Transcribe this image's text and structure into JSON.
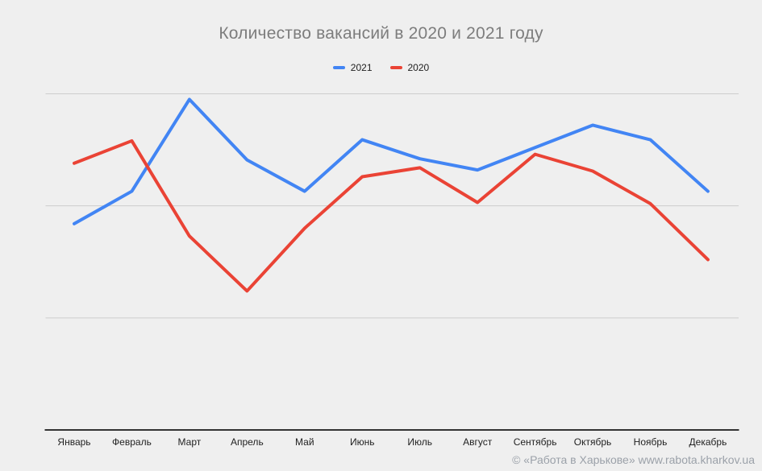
{
  "chart_data": {
    "type": "line",
    "title": "Количество вакансий в 2020 и 2021 году",
    "xlabel": "",
    "ylabel": "",
    "y_tick_labels": [],
    "y_axis_note": "no y-axis labels shown; values estimated in gridline units (baseline = 0, gridline spacing = 1)",
    "ylim": [
      0,
      3.15
    ],
    "gridline_values": [
      1,
      2,
      3
    ],
    "legend_position": "top-center",
    "categories": [
      "Январь",
      "Февраль",
      "Март",
      "Апрель",
      "Май",
      "Июнь",
      "Июль",
      "Август",
      "Сентябрь",
      "Октябрь",
      "Ноябрь",
      "Декабрь"
    ],
    "series": [
      {
        "name": "2021",
        "color": "#4285F4",
        "values": [
          1.84,
          2.13,
          2.95,
          2.41,
          2.13,
          2.59,
          2.42,
          2.32,
          2.52,
          2.72,
          2.59,
          2.13
        ]
      },
      {
        "name": "2020",
        "color": "#EA4335",
        "values": [
          2.38,
          2.58,
          1.73,
          1.24,
          1.8,
          2.26,
          2.34,
          2.03,
          2.46,
          2.31,
          2.02,
          1.52
        ]
      }
    ]
  },
  "footer": {
    "text": "© «Работа в Харькове» www.rabota.kharkov.ua"
  },
  "colors": {
    "background": "#EFEFEF",
    "gridline": "#CDCDCD",
    "axis_line": "#333333",
    "title_text": "#7D7D7D",
    "legend_text": "#212121",
    "x_label_text": "#222222",
    "footer_text": "#9BA1A9"
  }
}
